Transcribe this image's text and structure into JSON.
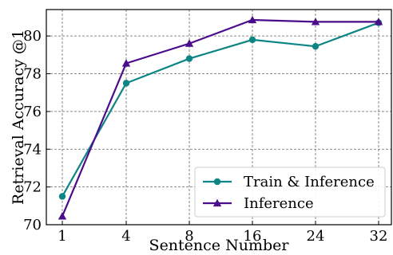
{
  "chart_data": {
    "type": "line",
    "categories": [
      "1",
      "4",
      "8",
      "16",
      "24",
      "32"
    ],
    "xlabel": "Sentence Number",
    "ylabel": "Retrieval Accuracy @1",
    "ylim": [
      70,
      81.4
    ],
    "yticks": [
      70,
      72,
      74,
      76,
      78,
      80
    ],
    "grid": true,
    "legend_position": "bottom-right",
    "series": [
      {
        "name": "Train & Inference",
        "color": "#0e8585",
        "marker": "circle",
        "values": [
          71.5,
          77.5,
          78.8,
          79.8,
          79.45,
          80.7
        ]
      },
      {
        "name": "Inference",
        "color": "#4b0c8c",
        "marker": "triangle",
        "values": [
          70.45,
          78.55,
          79.6,
          80.85,
          80.75,
          80.75
        ]
      }
    ]
  }
}
